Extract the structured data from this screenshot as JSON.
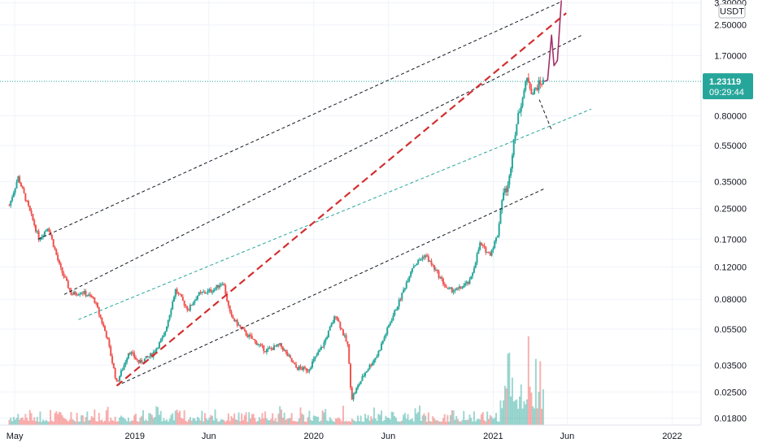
{
  "chart_data": {
    "type": "candlestick",
    "scale": "log",
    "currency_label": "USDT",
    "ylim": [
      0.0165,
      3.35
    ],
    "y_ticks": [
      {
        "value": 3.3,
        "label": "3.30000"
      },
      {
        "value": 2.5,
        "label": "2.50000"
      },
      {
        "value": 1.7,
        "label": "1.70000"
      },
      {
        "value": 0.8,
        "label": "0.80000"
      },
      {
        "value": 0.55,
        "label": "0.55000"
      },
      {
        "value": 0.35,
        "label": "0.35000"
      },
      {
        "value": 0.25,
        "label": "0.25000"
      },
      {
        "value": 0.17,
        "label": "0.17000"
      },
      {
        "value": 0.12,
        "label": "0.12000"
      },
      {
        "value": 0.08,
        "label": "0.08000"
      },
      {
        "value": 0.055,
        "label": "0.05500"
      },
      {
        "value": 0.035,
        "label": "0.03500"
      },
      {
        "value": 0.025,
        "label": "0.02500"
      },
      {
        "value": 0.018,
        "label": "0.01800"
      }
    ],
    "x_ticks": [
      {
        "date": "2018-05-01",
        "label": "May"
      },
      {
        "date": "2019-01-01",
        "label": "2019"
      },
      {
        "date": "2019-06-01",
        "label": "Jun"
      },
      {
        "date": "2020-01-01",
        "label": "2020"
      },
      {
        "date": "2020-06-01",
        "label": "Jun"
      },
      {
        "date": "2021-01-01",
        "label": "2021"
      },
      {
        "date": "2021-06-01",
        "label": "Jun"
      },
      {
        "date": "2022-01-01",
        "label": "2022"
      }
    ],
    "xlim": [
      "2018-04-01",
      "2022-03-01"
    ],
    "current_price": {
      "value": 1.23119,
      "label": "1.23119",
      "countdown": "09:29:44",
      "color": "#26a69a"
    },
    "price_path": [
      {
        "date": "2018-04-20",
        "price": 0.26
      },
      {
        "date": "2018-05-08",
        "price": 0.37
      },
      {
        "date": "2018-06-01",
        "price": 0.24
      },
      {
        "date": "2018-06-20",
        "price": 0.17
      },
      {
        "date": "2018-07-08",
        "price": 0.2
      },
      {
        "date": "2018-08-01",
        "price": 0.12
      },
      {
        "date": "2018-08-25",
        "price": 0.085
      },
      {
        "date": "2018-09-15",
        "price": 0.088
      },
      {
        "date": "2018-10-10",
        "price": 0.08
      },
      {
        "date": "2018-11-05",
        "price": 0.05
      },
      {
        "date": "2018-11-25",
        "price": 0.028
      },
      {
        "date": "2018-12-10",
        "price": 0.035
      },
      {
        "date": "2018-12-20",
        "price": 0.042
      },
      {
        "date": "2019-01-10",
        "price": 0.036
      },
      {
        "date": "2019-02-05",
        "price": 0.04
      },
      {
        "date": "2019-03-01",
        "price": 0.05
      },
      {
        "date": "2019-03-25",
        "price": 0.09
      },
      {
        "date": "2019-04-20",
        "price": 0.07
      },
      {
        "date": "2019-05-10",
        "price": 0.085
      },
      {
        "date": "2019-06-10",
        "price": 0.09
      },
      {
        "date": "2019-06-30",
        "price": 0.1
      },
      {
        "date": "2019-07-15",
        "price": 0.065
      },
      {
        "date": "2019-08-15",
        "price": 0.052
      },
      {
        "date": "2019-09-25",
        "price": 0.042
      },
      {
        "date": "2019-10-25",
        "price": 0.045
      },
      {
        "date": "2019-11-25",
        "price": 0.034
      },
      {
        "date": "2019-12-20",
        "price": 0.033
      },
      {
        "date": "2020-01-20",
        "price": 0.045
      },
      {
        "date": "2020-02-15",
        "price": 0.066
      },
      {
        "date": "2020-03-10",
        "price": 0.045
      },
      {
        "date": "2020-03-18",
        "price": 0.023
      },
      {
        "date": "2020-04-15",
        "price": 0.032
      },
      {
        "date": "2020-05-10",
        "price": 0.04
      },
      {
        "date": "2020-06-05",
        "price": 0.06
      },
      {
        "date": "2020-06-25",
        "price": 0.08
      },
      {
        "date": "2020-07-20",
        "price": 0.12
      },
      {
        "date": "2020-08-15",
        "price": 0.14
      },
      {
        "date": "2020-09-10",
        "price": 0.11
      },
      {
        "date": "2020-09-30",
        "price": 0.09
      },
      {
        "date": "2020-10-20",
        "price": 0.09
      },
      {
        "date": "2020-11-15",
        "price": 0.1
      },
      {
        "date": "2020-12-05",
        "price": 0.16
      },
      {
        "date": "2020-12-25",
        "price": 0.14
      },
      {
        "date": "2021-01-10",
        "price": 0.18
      },
      {
        "date": "2021-01-20",
        "price": 0.3
      },
      {
        "date": "2021-02-01",
        "price": 0.33
      },
      {
        "date": "2021-02-12",
        "price": 0.6
      },
      {
        "date": "2021-02-25",
        "price": 0.9
      },
      {
        "date": "2021-03-12",
        "price": 1.3
      },
      {
        "date": "2021-03-22",
        "price": 1.05
      },
      {
        "date": "2021-04-05",
        "price": 1.2
      },
      {
        "date": "2021-04-15",
        "price": 1.23119
      }
    ],
    "projection": [
      {
        "date": "2021-04-15",
        "price": 1.23
      },
      {
        "date": "2021-04-22",
        "price": 1.25
      },
      {
        "date": "2021-04-30",
        "price": 2.2
      },
      {
        "date": "2021-05-05",
        "price": 1.5
      },
      {
        "date": "2021-05-12",
        "price": 1.6
      },
      {
        "date": "2021-05-20",
        "price": 3.4
      }
    ],
    "trendlines": [
      {
        "style": "dashed",
        "color": "#131722",
        "from": {
          "date": "2018-06-18",
          "price": 0.17
        },
        "to": {
          "date": "2021-05-20",
          "price": 3.35
        }
      },
      {
        "style": "dashed",
        "color": "#131722",
        "from": {
          "date": "2018-08-10",
          "price": 0.085
        },
        "to": {
          "date": "2021-07-01",
          "price": 2.2
        }
      },
      {
        "style": "dashed",
        "color": "#131722",
        "from": {
          "date": "2018-11-25",
          "price": 0.027
        },
        "to": {
          "date": "2021-04-15",
          "price": 0.32
        }
      },
      {
        "style": "dashed",
        "color": "#26a69a",
        "from": {
          "date": "2018-09-08",
          "price": 0.062
        },
        "to": {
          "date": "2021-07-20",
          "price": 0.87
        }
      },
      {
        "style": "dashed-bold",
        "color": "#d32f2f",
        "from": {
          "date": "2018-11-25",
          "price": 0.027
        },
        "to": {
          "date": "2021-05-30",
          "price": 2.9
        }
      },
      {
        "style": "dashed",
        "color": "#131722",
        "from": {
          "date": "2021-04-05",
          "price": 0.98
        },
        "to": {
          "date": "2021-05-01",
          "price": 0.66
        }
      }
    ],
    "colors": {
      "up": "#26a69a",
      "down": "#ef5350",
      "projection": "#a3316a",
      "grid": "#f0f3fa",
      "axis_text": "#131722"
    }
  }
}
